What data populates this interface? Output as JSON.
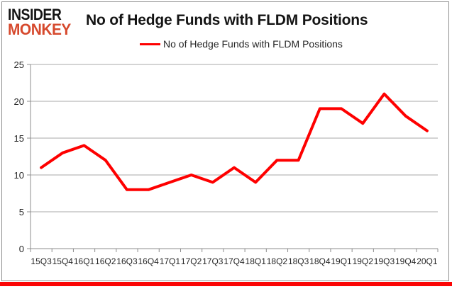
{
  "logo": {
    "line1": "INSIDER",
    "line2": "MONKEY",
    "line1_color": "#151515",
    "line2_color": "#d6492d"
  },
  "title": "No of Hedge Funds with FLDM Positions",
  "legend": {
    "label": "No of Hedge Funds with FLDM Positions",
    "swatch_color": "#fe0000"
  },
  "chart_data": {
    "type": "line",
    "title": "No of Hedge Funds with FLDM Positions",
    "categories": [
      "15Q3",
      "15Q4",
      "16Q1",
      "16Q2",
      "16Q3",
      "16Q4",
      "17Q1",
      "17Q2",
      "17Q3",
      "17Q4",
      "18Q1",
      "18Q2",
      "18Q3",
      "18Q4",
      "19Q1",
      "19Q2",
      "19Q3",
      "19Q4",
      "20Q1"
    ],
    "series": [
      {
        "name": "No of Hedge Funds with FLDM Positions",
        "values": [
          11,
          13,
          14,
          12,
          8,
          8,
          9,
          10,
          9,
          11,
          9,
          12,
          12,
          19,
          19,
          17,
          21,
          18,
          16
        ],
        "color": "#fe0000",
        "line_width": 4
      }
    ],
    "xlabel": "",
    "ylabel": "",
    "ylim": [
      0,
      25
    ],
    "yticks": [
      0,
      5,
      10,
      15,
      20,
      25
    ],
    "grid": "horizontal",
    "legend_position": "top-center"
  },
  "colors": {
    "grid": "#aaaaaa",
    "axis": "#8c8c8c",
    "tick_text": "#262626",
    "frame": "#8f8f8f",
    "bottom_bar": "#fb0505"
  }
}
